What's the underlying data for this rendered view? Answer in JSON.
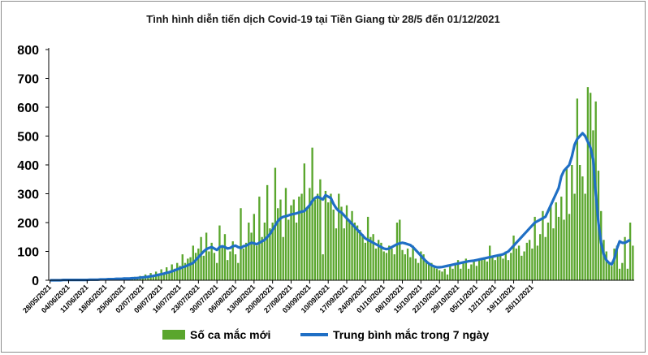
{
  "colors": {
    "bar": "#5aa62d",
    "line": "#1f6fc5",
    "axis": "#000000"
  },
  "chart_data": {
    "type": "bar",
    "title": "Tình hình diễn tiến dịch Covid-19 tại Tiền Giang từ 28/5 đến 01/12/2021",
    "ylim": [
      0,
      800
    ],
    "yticks": [
      0,
      100,
      200,
      300,
      400,
      500,
      600,
      700,
      800
    ],
    "x_tick_labels": [
      "28/05/2021",
      "04/06/2021",
      "11/06/2021",
      "18/06/2021",
      "25/06/2021",
      "02/07/2021",
      "09/07/2021",
      "16/07/2021",
      "23/07/2021",
      "30/07/2021",
      "06/08/2021",
      "13/08/2021",
      "20/08/2021",
      "27/08/2021",
      "03/09/2021",
      "10/09/2021",
      "17/09/2021",
      "24/09/2021",
      "01/10/2021",
      "08/10/2021",
      "15/10/2021",
      "22/10/2021",
      "29/10/2021",
      "05/11/2021",
      "12/11/2021",
      "19/11/2021",
      "26/11/2021"
    ],
    "grid": false,
    "legend_placement": "bottom",
    "series": [
      {
        "name": "Số ca mắc mới",
        "type": "bar",
        "values": [
          0,
          0,
          1,
          0,
          0,
          2,
          1,
          0,
          0,
          1,
          3,
          2,
          1,
          0,
          2,
          5,
          3,
          2,
          4,
          1,
          6,
          3,
          5,
          2,
          8,
          4,
          6,
          3,
          10,
          5,
          8,
          4,
          12,
          6,
          15,
          8,
          20,
          12,
          25,
          15,
          30,
          20,
          38,
          25,
          45,
          30,
          55,
          40,
          60,
          50,
          90,
          60,
          75,
          80,
          120,
          95,
          110,
          150,
          85,
          165,
          100,
          130,
          95,
          60,
          190,
          120,
          160,
          70,
          100,
          135,
          90,
          60,
          250,
          110,
          130,
          200,
          165,
          230,
          120,
          290,
          150,
          200,
          330,
          180,
          200,
          390,
          250,
          280,
          150,
          320,
          210,
          260,
          280,
          200,
          290,
          300,
          405,
          250,
          320,
          460,
          280,
          300,
          350,
          90,
          310,
          270,
          300,
          245,
          180,
          300,
          255,
          180,
          260,
          210,
          240,
          200,
          190,
          175,
          160,
          130,
          220,
          150,
          160,
          110,
          140,
          130,
          100,
          95,
          120,
          110,
          90,
          200,
          210,
          105,
          90,
          110,
          80,
          120,
          75,
          60,
          100,
          90,
          70,
          55,
          60,
          50,
          40,
          35,
          30,
          40,
          20,
          50,
          40,
          60,
          70,
          40,
          60,
          75,
          40,
          55,
          65,
          50,
          70,
          75,
          80,
          65,
          120,
          80,
          70,
          85,
          90,
          75,
          100,
          70,
          95,
          155,
          110,
          120,
          85,
          100,
          130,
          140,
          110,
          220,
          120,
          160,
          240,
          150,
          200,
          260,
          180,
          270,
          220,
          290,
          210,
          390,
          230,
          400,
          300,
          630,
          400,
          360,
          300,
          670,
          650,
          520,
          620,
          380,
          240,
          140,
          100,
          60,
          50,
          110,
          120,
          40,
          60,
          150,
          40,
          200,
          120
        ]
      },
      {
        "name": "Trung bình mắc trong 7 ngày",
        "type": "line",
        "values": [
          0,
          0,
          0,
          0,
          0,
          1,
          1,
          1,
          1,
          1,
          1,
          1,
          1,
          1,
          1,
          2,
          2,
          2,
          2,
          3,
          3,
          3,
          4,
          4,
          4,
          5,
          5,
          5,
          6,
          6,
          6,
          7,
          7,
          8,
          9,
          10,
          11,
          12,
          14,
          15,
          17,
          19,
          21,
          23,
          26,
          28,
          31,
          34,
          38,
          41,
          45,
          48,
          52,
          56,
          60,
          70,
          80,
          90,
          100,
          108,
          112,
          115,
          110,
          105,
          115,
          118,
          115,
          110,
          112,
          118,
          120,
          115,
          112,
          118,
          120,
          125,
          130,
          128,
          125,
          130,
          135,
          140,
          150,
          160,
          175,
          190,
          205,
          215,
          220,
          222,
          225,
          228,
          230,
          232,
          235,
          238,
          240,
          250,
          260,
          275,
          285,
          290,
          285,
          280,
          295,
          290,
          285,
          265,
          250,
          240,
          235,
          225,
          215,
          205,
          195,
          185,
          175,
          165,
          155,
          145,
          140,
          135,
          130,
          125,
          120,
          115,
          110,
          108,
          110,
          115,
          120,
          125,
          128,
          130,
          128,
          125,
          122,
          115,
          105,
          95,
          85,
          75,
          65,
          58,
          52,
          48,
          45,
          45,
          46,
          48,
          50,
          52,
          54,
          56,
          58,
          60,
          62,
          64,
          66,
          67,
          68,
          70,
          72,
          74,
          76,
          78,
          80,
          82,
          84,
          86,
          88,
          90,
          95,
          100,
          110,
          120,
          130,
          140,
          150,
          160,
          170,
          180,
          190,
          200,
          205,
          210,
          215,
          220,
          240,
          260,
          280,
          300,
          320,
          360,
          380,
          390,
          400,
          430,
          470,
          490,
          500,
          510,
          500,
          480,
          460,
          420,
          300,
          200,
          130,
          90,
          70,
          60,
          55,
          75,
          110,
          135,
          130,
          130,
          135,
          140
        ]
      }
    ]
  },
  "legend": {
    "bar_label": "Số ca mắc mới",
    "line_label": "Trung bình mắc trong 7 ngày"
  }
}
